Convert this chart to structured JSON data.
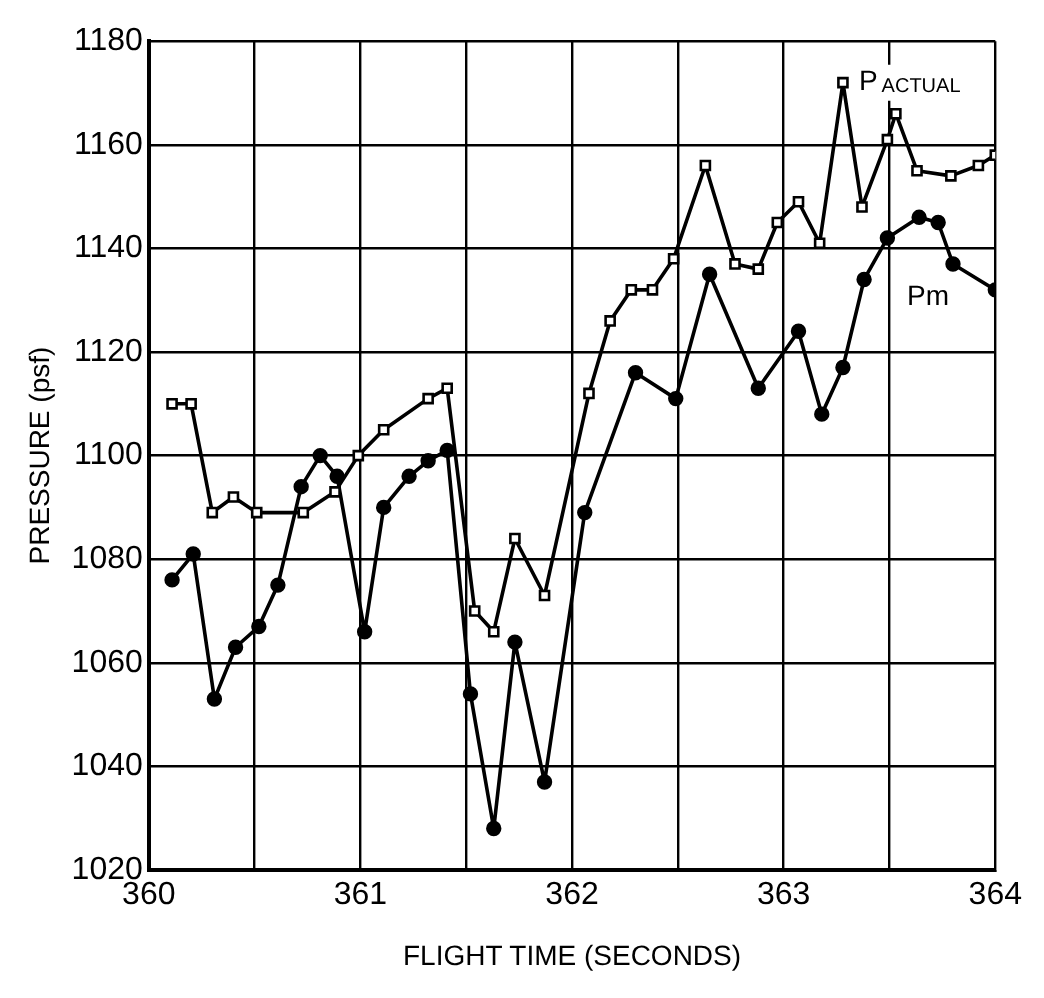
{
  "chart_data": {
    "type": "line",
    "xlabel": "FLIGHT TIME (SECONDS)",
    "ylabel": "PRESSURE (psf)",
    "xlim": [
      360,
      364
    ],
    "xticks": [
      360,
      {
        "value": 360.5,
        "label": null
      },
      361,
      {
        "value": 361.5,
        "label": null
      },
      362,
      {
        "value": 362.5,
        "label": null
      },
      363,
      {
        "value": 363.5,
        "label": null
      },
      364
    ],
    "ylim": [
      1020,
      1180
    ],
    "yticks": [
      1020,
      1040,
      1060,
      1080,
      1100,
      1120,
      1140,
      1160,
      1180
    ],
    "grid": true,
    "legend": false,
    "series": [
      {
        "name": "P$_{ACTUAL}$",
        "color": "#000000",
        "marker": "square",
        "x": [
          360.11,
          360.2,
          360.3,
          360.4,
          360.51,
          360.73,
          360.88,
          360.99,
          361.11,
          361.32,
          361.41,
          361.54,
          361.63,
          361.73,
          361.87,
          362.08,
          362.18,
          362.28,
          362.38,
          362.48,
          362.63,
          362.77,
          362.88,
          362.97,
          363.07,
          363.17,
          363.28,
          363.37,
          363.49,
          363.53,
          363.63,
          363.79,
          363.92,
          364
        ],
        "values": [
          1110,
          1110,
          1089,
          1092,
          1089,
          1089,
          1093,
          1100,
          1105,
          1111,
          1113,
          1070,
          1066,
          1084,
          1073,
          1112,
          1126,
          1132,
          1132,
          1138,
          1156,
          1137,
          1136,
          1145,
          1149,
          1141,
          1172,
          1148,
          1161,
          1166,
          1155,
          1154,
          1156,
          1158
        ]
      },
      {
        "name": "Pm",
        "color": "#000000",
        "marker": "circle",
        "x": [
          360.11,
          360.21,
          360.31,
          360.41,
          360.52,
          360.61,
          360.72,
          360.81,
          360.89,
          361.02,
          361.11,
          361.23,
          361.32,
          361.41,
          361.52,
          361.63,
          361.73,
          361.87,
          362.06,
          362.3,
          362.49,
          362.65,
          362.88,
          363.07,
          363.18,
          363.28,
          363.38,
          363.49,
          363.64,
          363.73,
          363.8,
          364
        ],
        "values": [
          1076,
          1081,
          1053,
          1063,
          1067,
          1075,
          1094,
          1100,
          1096,
          1066,
          1090,
          1096,
          1099,
          1101,
          1054,
          1028,
          1064,
          1037,
          1089,
          1116,
          1111,
          1135,
          1113,
          1124,
          1108,
          1117,
          1134,
          1142,
          1146,
          1145,
          1137,
          1132
        ]
      }
    ]
  }
}
